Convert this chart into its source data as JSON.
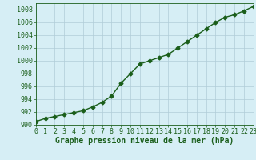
{
  "x": [
    0,
    1,
    2,
    3,
    4,
    5,
    6,
    7,
    8,
    9,
    10,
    11,
    12,
    13,
    14,
    15,
    16,
    17,
    18,
    19,
    20,
    21,
    22,
    23
  ],
  "y": [
    990.5,
    991.0,
    991.3,
    991.6,
    991.9,
    992.2,
    992.8,
    993.5,
    994.5,
    996.5,
    998.0,
    999.5,
    1000.0,
    1000.5,
    1001.0,
    1002.0,
    1003.0,
    1004.0,
    1005.0,
    1006.0,
    1006.8,
    1007.2,
    1007.8,
    1008.5
  ],
  "ylim": [
    990,
    1009
  ],
  "xlim": [
    0,
    23
  ],
  "yticks": [
    990,
    992,
    994,
    996,
    998,
    1000,
    1002,
    1004,
    1006,
    1008
  ],
  "xticks": [
    0,
    1,
    2,
    3,
    4,
    5,
    6,
    7,
    8,
    9,
    10,
    11,
    12,
    13,
    14,
    15,
    16,
    17,
    18,
    19,
    20,
    21,
    22,
    23
  ],
  "xlabel": "Graphe pression niveau de la mer (hPa)",
  "line_color": "#1a5e1a",
  "marker": "D",
  "background_color": "#d6eef5",
  "grid_color": "#b0ccd8",
  "tick_label_color": "#1a5e1a",
  "xlabel_color": "#1a5e1a",
  "xlabel_fontsize": 7,
  "tick_fontsize": 6,
  "linewidth": 1.0,
  "markersize": 2.5
}
